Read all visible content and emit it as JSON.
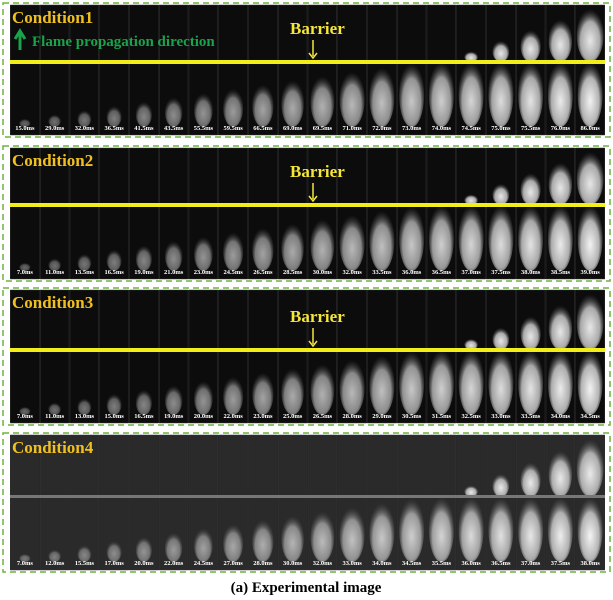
{
  "panels": [
    {
      "label": "Condition1",
      "direction": "Flame propagation direction",
      "barrier": "Barrier",
      "times": [
        "15.0ms",
        "29.0ms",
        "32.0ms",
        "36.5ms",
        "41.5ms",
        "43.5ms",
        "55.5ms",
        "59.5ms",
        "66.5ms",
        "69.0ms",
        "69.5ms",
        "71.0ms",
        "72.0ms",
        "73.0ms",
        "74.0ms",
        "74.5ms",
        "75.0ms",
        "75.5ms",
        "76.0ms",
        "86.0ms"
      ]
    },
    {
      "label": "Condition2",
      "barrier": "Barrier",
      "times": [
        "7.0ms",
        "11.0ms",
        "13.5ms",
        "16.5ms",
        "19.0ms",
        "21.0ms",
        "23.0ms",
        "24.5ms",
        "26.5ms",
        "28.5ms",
        "30.0ms",
        "32.0ms",
        "33.5ms",
        "36.0ms",
        "36.5ms",
        "37.0ms",
        "37.5ms",
        "38.0ms",
        "38.5ms",
        "39.0ms"
      ]
    },
    {
      "label": "Condition3",
      "barrier": "Barrier",
      "times": [
        "7.0ms",
        "11.0ms",
        "13.0ms",
        "15.0ms",
        "16.5ms",
        "19.0ms",
        "20.0ms",
        "22.0ms",
        "23.0ms",
        "25.0ms",
        "26.5ms",
        "28.0ms",
        "29.0ms",
        "30.5ms",
        "31.5ms",
        "32.5ms",
        "33.0ms",
        "33.5ms",
        "34.0ms",
        "34.5ms"
      ]
    },
    {
      "label": "Condition4",
      "times": [
        "7.0ms",
        "12.0ms",
        "15.5ms",
        "17.0ms",
        "20.0ms",
        "22.0ms",
        "24.5ms",
        "27.0ms",
        "28.0ms",
        "30.0ms",
        "32.0ms",
        "33.0ms",
        "34.0ms",
        "34.5ms",
        "35.5ms",
        "36.0ms",
        "36.5ms",
        "37.0ms",
        "37.5ms",
        "38.0ms"
      ]
    }
  ],
  "caption": "(a) Experimental image"
}
